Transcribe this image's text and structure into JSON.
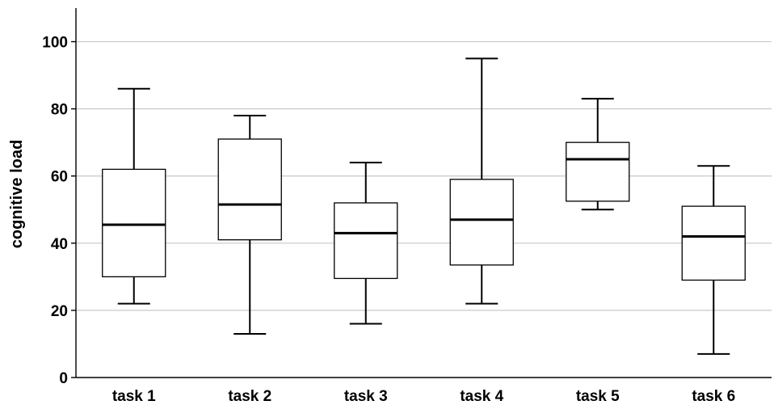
{
  "chart_data": {
    "type": "boxplot",
    "ylabel": "cognitive load",
    "ylim": [
      0,
      110
    ],
    "yticks": [
      0,
      20,
      40,
      60,
      80,
      100
    ],
    "grid": true,
    "categories": [
      "task 1",
      "task 2",
      "task 3",
      "task 4",
      "task 5",
      "task 6"
    ],
    "boxes": [
      {
        "min": 22,
        "q1": 30,
        "median": 45.5,
        "q3": 62,
        "max": 86
      },
      {
        "min": 13,
        "q1": 41,
        "median": 51.5,
        "q3": 71,
        "max": 78
      },
      {
        "min": 16,
        "q1": 29.5,
        "median": 43,
        "q3": 52,
        "max": 64
      },
      {
        "min": 22,
        "q1": 33.5,
        "median": 47,
        "q3": 59,
        "max": 95
      },
      {
        "min": 50,
        "q1": 52.5,
        "median": 65,
        "q3": 70,
        "max": 83
      },
      {
        "min": 7,
        "q1": 29,
        "median": 42,
        "q3": 51,
        "max": 63
      }
    ]
  }
}
